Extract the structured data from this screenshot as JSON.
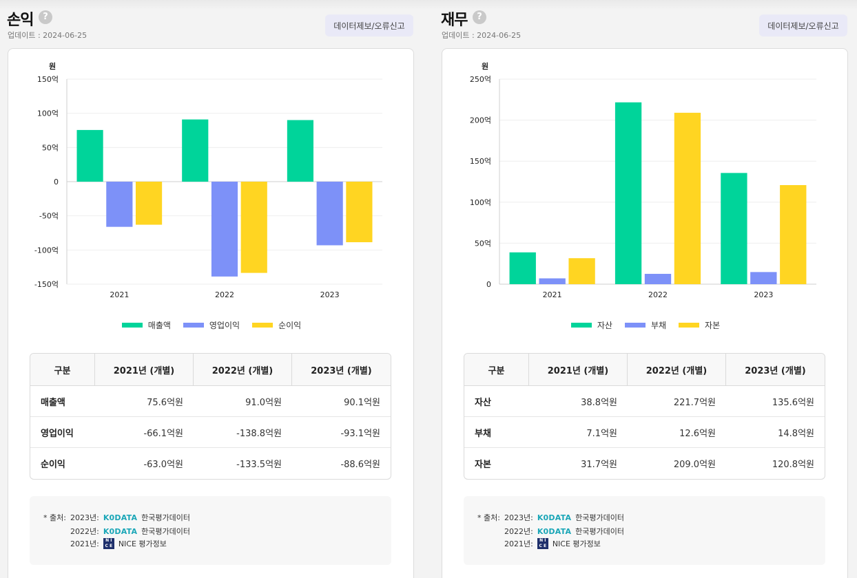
{
  "sections": [
    {
      "title": "손익",
      "help": "?",
      "update": "업데이트 : 2024-06-25",
      "report_button": "데이터제보/오류신고",
      "chart_data": {
        "type": "bar",
        "unit_label": "원",
        "categories": [
          "2021",
          "2022",
          "2023"
        ],
        "series": [
          {
            "name": "매출액",
            "color": "#00d49a",
            "values": [
              75.6,
              91.0,
              90.1
            ]
          },
          {
            "name": "영업이익",
            "color": "#7d91f8",
            "values": [
              -66.1,
              -138.8,
              -93.1
            ]
          },
          {
            "name": "순이익",
            "color": "#ffd522",
            "values": [
              -63.0,
              -133.5,
              -88.6
            ]
          }
        ],
        "ylim": [
          -150,
          150
        ],
        "yticks": [
          150,
          100,
          50,
          0,
          -50,
          -100,
          -150
        ],
        "ytick_labels": [
          "150억",
          "100억",
          "50억",
          "0",
          "-50억",
          "-100억",
          "-150억"
        ],
        "grid": true,
        "legend_position": "bottom"
      },
      "table": {
        "headers": [
          "구분",
          "2021년 (개별)",
          "2022년 (개별)",
          "2023년 (개별)"
        ],
        "rows": [
          {
            "label": "매출액",
            "values": [
              "75.6억원",
              "91.0억원",
              "90.1억원"
            ]
          },
          {
            "label": "영업이익",
            "values": [
              "-66.1억원",
              "-138.8억원",
              "-93.1억원"
            ]
          },
          {
            "label": "순이익",
            "values": [
              "-63.0억원",
              "-133.5억원",
              "-88.6억원"
            ]
          }
        ]
      },
      "source": {
        "prefix": "* 출처:",
        "rows": [
          {
            "year": "2023년:",
            "logo": "K0DATA",
            "name": "한국평가데이터"
          },
          {
            "year": "2022년:",
            "logo": "K0DATA",
            "name": "한국평가데이터"
          },
          {
            "year": "2021년:",
            "logo": "NICE",
            "name": "NICE 평가정보"
          }
        ]
      }
    },
    {
      "title": "재무",
      "help": "?",
      "update": "업데이트 : 2024-06-25",
      "report_button": "데이터제보/오류신고",
      "chart_data": {
        "type": "bar",
        "unit_label": "원",
        "categories": [
          "2021",
          "2022",
          "2023"
        ],
        "series": [
          {
            "name": "자산",
            "color": "#00d49a",
            "values": [
              38.8,
              221.7,
              135.6
            ]
          },
          {
            "name": "부채",
            "color": "#7d91f8",
            "values": [
              7.1,
              12.6,
              14.8
            ]
          },
          {
            "name": "자본",
            "color": "#ffd522",
            "values": [
              31.7,
              209.0,
              120.8
            ]
          }
        ],
        "ylim": [
          0,
          250
        ],
        "yticks": [
          250,
          200,
          150,
          100,
          50,
          0
        ],
        "ytick_labels": [
          "250억",
          "200억",
          "150억",
          "100억",
          "50억",
          "0"
        ],
        "grid": true,
        "legend_position": "bottom"
      },
      "table": {
        "headers": [
          "구분",
          "2021년 (개별)",
          "2022년 (개별)",
          "2023년 (개별)"
        ],
        "rows": [
          {
            "label": "자산",
            "values": [
              "38.8억원",
              "221.7억원",
              "135.6억원"
            ]
          },
          {
            "label": "부채",
            "values": [
              "7.1억원",
              "12.6억원",
              "14.8억원"
            ]
          },
          {
            "label": "자본",
            "values": [
              "31.7억원",
              "209.0억원",
              "120.8억원"
            ]
          }
        ]
      },
      "source": {
        "prefix": "* 출처:",
        "rows": [
          {
            "year": "2023년:",
            "logo": "K0DATA",
            "name": "한국평가데이터"
          },
          {
            "year": "2022년:",
            "logo": "K0DATA",
            "name": "한국평가데이터"
          },
          {
            "year": "2021년:",
            "logo": "NICE",
            "name": "NICE 평가정보"
          }
        ]
      }
    }
  ]
}
